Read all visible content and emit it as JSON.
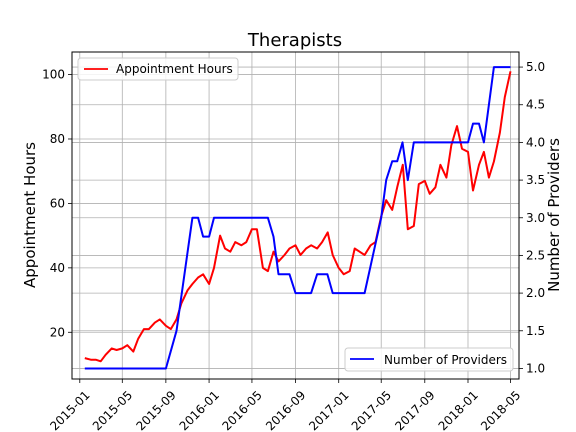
{
  "chart_data": {
    "type": "line",
    "title": "Therapists",
    "xlabel": "",
    "ylabel": "Appointment Hours",
    "y2label": "Number of Providers",
    "xlim": [
      "2014-12-10",
      "2018-05-25"
    ],
    "ylim": [
      5.5,
      107
    ],
    "y2lim": [
      0.86,
      5.2
    ],
    "x_ticks": [
      "2015-01",
      "2015-05",
      "2015-09",
      "2016-01",
      "2016-05",
      "2016-09",
      "2017-01",
      "2017-05",
      "2017-09",
      "2018-01",
      "2018-05"
    ],
    "y_ticks": [
      20,
      40,
      60,
      80,
      100
    ],
    "y2_ticks": [
      "1.0",
      "1.5",
      "2.0",
      "2.5",
      "3.0",
      "3.5",
      "4.0",
      "4.5",
      "5.0"
    ],
    "grid": true,
    "series": [
      {
        "name": "Appointment Hours",
        "axis": "left",
        "color": "#ff0000",
        "legend_position": "upper left",
        "x": [
          "2015-01-15",
          "2015-02-01",
          "2015-02-15",
          "2015-03-01",
          "2015-03-15",
          "2015-04-01",
          "2015-04-15",
          "2015-05-01",
          "2015-05-15",
          "2015-06-01",
          "2015-06-15",
          "2015-07-01",
          "2015-07-15",
          "2015-08-01",
          "2015-08-15",
          "2015-09-01",
          "2015-09-15",
          "2015-10-01",
          "2015-10-15",
          "2015-11-01",
          "2015-11-15",
          "2015-12-01",
          "2015-12-15",
          "2016-01-01",
          "2016-01-15",
          "2016-02-01",
          "2016-02-15",
          "2016-03-01",
          "2016-03-15",
          "2016-04-01",
          "2016-04-15",
          "2016-05-01",
          "2016-05-15",
          "2016-06-01",
          "2016-06-15",
          "2016-07-01",
          "2016-07-15",
          "2016-08-01",
          "2016-08-15",
          "2016-09-01",
          "2016-09-15",
          "2016-10-01",
          "2016-10-15",
          "2016-11-01",
          "2016-11-15",
          "2016-12-01",
          "2016-12-15",
          "2017-01-01",
          "2017-01-15",
          "2017-02-01",
          "2017-02-15",
          "2017-03-01",
          "2017-03-15",
          "2017-04-01",
          "2017-04-15",
          "2017-05-01",
          "2017-05-15",
          "2017-06-01",
          "2017-06-15",
          "2017-07-01",
          "2017-07-15",
          "2017-08-01",
          "2017-08-15",
          "2017-09-01",
          "2017-09-15",
          "2017-10-01",
          "2017-10-15",
          "2017-11-01",
          "2017-11-15",
          "2017-12-01",
          "2017-12-15",
          "2018-01-01",
          "2018-01-15",
          "2018-02-01",
          "2018-02-15",
          "2018-03-01",
          "2018-03-15",
          "2018-04-01",
          "2018-04-15",
          "2018-05-01"
        ],
        "values": [
          12,
          11.5,
          11.5,
          11,
          13,
          15,
          14.5,
          15,
          16,
          14,
          18,
          21,
          21,
          23,
          24,
          22,
          21,
          24,
          29,
          33,
          35,
          37,
          38,
          35,
          40,
          50,
          46,
          45,
          48,
          47,
          48,
          52,
          52,
          40,
          39,
          45,
          42,
          44,
          46,
          47,
          44,
          46,
          47,
          46,
          48,
          51,
          44,
          40,
          38,
          39,
          46,
          45,
          44,
          47,
          48,
          56,
          61,
          58,
          65,
          72,
          52,
          53,
          66,
          67,
          63,
          65,
          72,
          68,
          78,
          84,
          77,
          76,
          64,
          72,
          76,
          68,
          73,
          82,
          93,
          101
        ]
      },
      {
        "name": "Number of Providers",
        "axis": "right",
        "color": "#0000ff",
        "legend_position": "lower right",
        "x": [
          "2015-01-15",
          "2015-09-01",
          "2015-10-01",
          "2015-11-15",
          "2015-12-01",
          "2015-12-15",
          "2016-01-01",
          "2016-01-15",
          "2016-04-15",
          "2016-05-01",
          "2016-06-15",
          "2016-07-01",
          "2016-07-15",
          "2016-08-15",
          "2016-09-01",
          "2016-10-15",
          "2016-11-01",
          "2016-11-30",
          "2016-12-15",
          "2017-01-01",
          "2017-03-15",
          "2017-05-01",
          "2017-05-15",
          "2017-06-01",
          "2017-06-15",
          "2017-06-30",
          "2017-07-15",
          "2017-08-01",
          "2018-01-01",
          "2018-01-15",
          "2018-02-01",
          "2018-02-15",
          "2018-03-15",
          "2018-05-01"
        ],
        "values": [
          1.0,
          1.0,
          1.5,
          3.0,
          3.0,
          2.75,
          2.75,
          3.0,
          3.0,
          3.0,
          3.0,
          2.75,
          2.25,
          2.25,
          2.0,
          2.0,
          2.25,
          2.25,
          2.0,
          2.0,
          2.0,
          3.0,
          3.5,
          3.75,
          3.75,
          4.0,
          3.5,
          4.0,
          4.0,
          4.25,
          4.25,
          4.0,
          5.0,
          5.0
        ]
      }
    ]
  }
}
